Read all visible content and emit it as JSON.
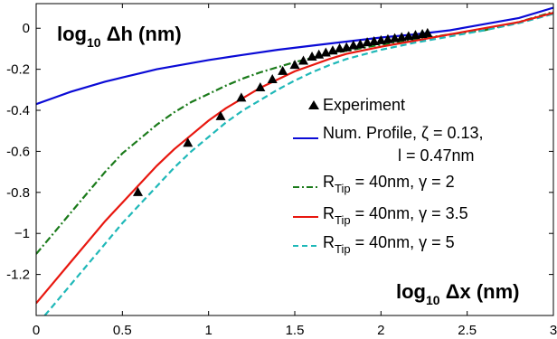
{
  "chart_data": {
    "type": "line",
    "xlabel": {
      "base": "log",
      "sub": "10",
      "rest": " Δx (nm)"
    },
    "ylabel": {
      "base": "log",
      "sub": "10",
      "rest": " Δh (nm)"
    },
    "xlim": [
      0,
      3
    ],
    "ylim": [
      -1.4,
      0.12
    ],
    "x_ticks": [
      0,
      0.5,
      1,
      1.5,
      2,
      2.5,
      3
    ],
    "x_tick_labels": [
      "0",
      "0.5",
      "1",
      "1.5",
      "2",
      "2.5",
      "3"
    ],
    "y_ticks": [
      0,
      -0.2,
      -0.4,
      -0.6,
      -0.8,
      -1,
      -1.2
    ],
    "y_tick_labels": [
      "0",
      "-0.2",
      "-0.4",
      "-0.6",
      "-0.8",
      "−1",
      "-1.2"
    ],
    "grid": false,
    "legend_position": "right",
    "series": [
      {
        "name": "Experiment",
        "style": "marker-triangle",
        "color": "#000000",
        "x": [
          0.59,
          0.88,
          1.07,
          1.19,
          1.3,
          1.37,
          1.43,
          1.5,
          1.55,
          1.6,
          1.64,
          1.68,
          1.72,
          1.76,
          1.8,
          1.84,
          1.88,
          1.92,
          1.96,
          2.0,
          2.04,
          2.08,
          2.12,
          2.16,
          2.2,
          2.24,
          2.27
        ],
        "y": [
          -0.8,
          -0.56,
          -0.43,
          -0.34,
          -0.29,
          -0.25,
          -0.21,
          -0.18,
          -0.16,
          -0.14,
          -0.13,
          -0.12,
          -0.11,
          -0.1,
          -0.095,
          -0.085,
          -0.08,
          -0.07,
          -0.065,
          -0.06,
          -0.055,
          -0.05,
          -0.045,
          -0.04,
          -0.035,
          -0.03,
          -0.025
        ]
      },
      {
        "name": "Num. Profile, ζ = 0.13,",
        "name_line2": "l = 0.47nm",
        "style": "solid",
        "color": "#0b0bd6",
        "x": [
          0,
          0.1,
          0.2,
          0.3,
          0.4,
          0.5,
          0.6,
          0.7,
          0.8,
          0.9,
          1.0,
          1.2,
          1.4,
          1.6,
          1.8,
          2.0,
          2.2,
          2.4,
          2.6,
          2.8,
          3.0
        ],
        "y": [
          -0.37,
          -0.34,
          -0.31,
          -0.285,
          -0.26,
          -0.24,
          -0.22,
          -0.2,
          -0.185,
          -0.17,
          -0.155,
          -0.13,
          -0.105,
          -0.085,
          -0.065,
          -0.045,
          -0.03,
          -0.01,
          0.02,
          0.05,
          0.1
        ]
      },
      {
        "name": "R",
        "name_sub": "Tip",
        "name_rest": " = 40nm, γ = 2",
        "style": "dashdot",
        "color": "#1a7a1a",
        "x": [
          0,
          0.1,
          0.2,
          0.3,
          0.4,
          0.5,
          0.6,
          0.7,
          0.8,
          0.9,
          1.0,
          1.1,
          1.2,
          1.3,
          1.4,
          1.5,
          1.6,
          1.7,
          1.8,
          2.0,
          2.2,
          2.4,
          2.6,
          2.8,
          3.0
        ],
        "y": [
          -1.1,
          -1.0,
          -0.9,
          -0.8,
          -0.7,
          -0.61,
          -0.54,
          -0.47,
          -0.41,
          -0.36,
          -0.32,
          -0.28,
          -0.245,
          -0.215,
          -0.19,
          -0.165,
          -0.145,
          -0.125,
          -0.11,
          -0.08,
          -0.055,
          -0.03,
          -0.01,
          0.03,
          0.08
        ]
      },
      {
        "name": "R",
        "name_sub": "Tip",
        "name_rest": " = 40nm, γ = 3.5",
        "style": "solid",
        "color": "#e8170f",
        "x": [
          0,
          0.1,
          0.2,
          0.3,
          0.4,
          0.5,
          0.6,
          0.7,
          0.8,
          0.9,
          1.0,
          1.1,
          1.2,
          1.3,
          1.4,
          1.5,
          1.6,
          1.7,
          1.8,
          2.0,
          2.2,
          2.4,
          2.6,
          2.8,
          3.0
        ],
        "y": [
          -1.34,
          -1.24,
          -1.14,
          -1.04,
          -0.94,
          -0.85,
          -0.76,
          -0.67,
          -0.59,
          -0.52,
          -0.45,
          -0.39,
          -0.34,
          -0.29,
          -0.25,
          -0.21,
          -0.18,
          -0.15,
          -0.125,
          -0.09,
          -0.06,
          -0.03,
          0.0,
          0.03,
          0.075
        ]
      },
      {
        "name": "R",
        "name_sub": "Tip",
        "name_rest": " = 40nm, γ = 5",
        "style": "dashed",
        "color": "#1fb8b8",
        "x": [
          0.05,
          0.1,
          0.2,
          0.3,
          0.4,
          0.5,
          0.6,
          0.7,
          0.8,
          0.9,
          1.0,
          1.1,
          1.2,
          1.3,
          1.4,
          1.5,
          1.6,
          1.7,
          1.8,
          2.0,
          2.2,
          2.4,
          2.6,
          2.8,
          3.0
        ],
        "y": [
          -1.4,
          -1.35,
          -1.25,
          -1.15,
          -1.05,
          -0.95,
          -0.86,
          -0.77,
          -0.68,
          -0.6,
          -0.53,
          -0.46,
          -0.4,
          -0.35,
          -0.3,
          -0.255,
          -0.215,
          -0.18,
          -0.15,
          -0.105,
          -0.07,
          -0.04,
          -0.01,
          0.025,
          0.07
        ]
      }
    ]
  }
}
